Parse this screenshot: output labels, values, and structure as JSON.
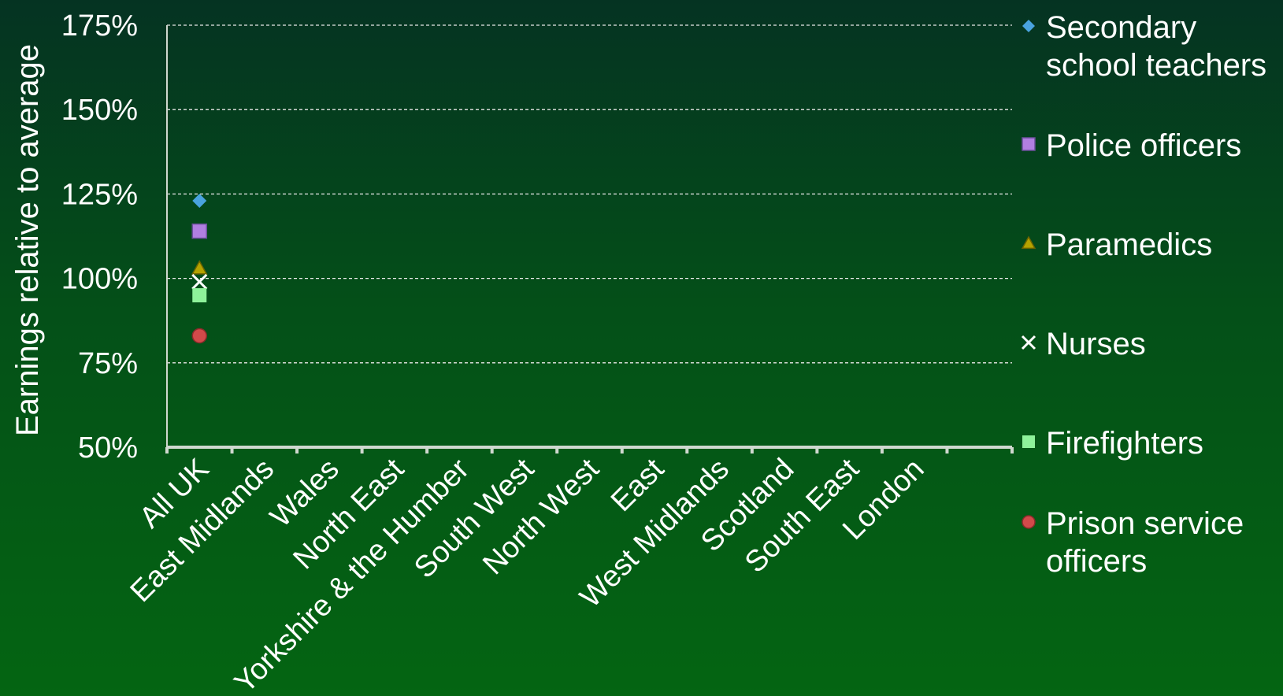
{
  "chart_data": {
    "type": "scatter",
    "ylabel": "Earnings relative to average",
    "ylim": [
      0.5,
      1.75
    ],
    "yticks": [
      "50%",
      "75%",
      "100%",
      "125%",
      "150%",
      "175%"
    ],
    "grid": true,
    "legend_position": "right",
    "categories": [
      "All UK",
      "East Midlands",
      "Wales",
      "North East",
      "Yorkshire & the Humber",
      "South West",
      "North West",
      "East",
      "West Midlands",
      "Scotland",
      "South East",
      "London"
    ],
    "series": [
      {
        "name": "Secondary school teachers",
        "lines": [
          "Secondary",
          "school teachers"
        ],
        "marker": "diamond",
        "color": "#4aa3df",
        "values": [
          1.23,
          null,
          null,
          null,
          null,
          null,
          null,
          null,
          null,
          null,
          null,
          null
        ]
      },
      {
        "name": "Police officers",
        "lines": [
          "Police officers"
        ],
        "marker": "square",
        "color": "#b07fe0",
        "values": [
          1.14,
          null,
          null,
          null,
          null,
          null,
          null,
          null,
          null,
          null,
          null,
          null
        ]
      },
      {
        "name": "Paramedics",
        "lines": [
          "Paramedics"
        ],
        "marker": "triangle",
        "color": "#b5a300",
        "values": [
          1.03,
          null,
          null,
          null,
          null,
          null,
          null,
          null,
          null,
          null,
          null,
          null
        ]
      },
      {
        "name": "Nurses",
        "lines": [
          "Nurses"
        ],
        "marker": "x",
        "color": "#ffffff",
        "values": [
          0.99,
          null,
          null,
          null,
          null,
          null,
          null,
          null,
          null,
          null,
          null,
          null
        ]
      },
      {
        "name": "Firefighters",
        "lines": [
          "Firefighters"
        ],
        "marker": "square",
        "color": "#8ef29a",
        "values": [
          0.95,
          null,
          null,
          null,
          null,
          null,
          null,
          null,
          null,
          null,
          null,
          null
        ]
      },
      {
        "name": "Prison service officers",
        "lines": [
          "Prison service",
          "officers"
        ],
        "marker": "circle",
        "color": "#d24a4a",
        "values": [
          0.83,
          null,
          null,
          null,
          null,
          null,
          null,
          null,
          null,
          null,
          null,
          null
        ]
      }
    ]
  }
}
